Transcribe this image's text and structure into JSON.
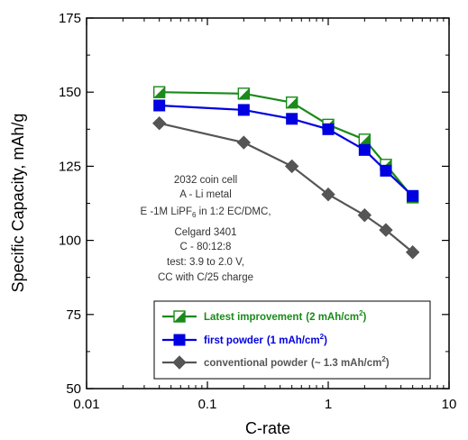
{
  "chart_data": {
    "type": "line",
    "xscale": "log",
    "xlim": [
      0.01,
      10
    ],
    "ylim": [
      50,
      175
    ],
    "xticks": [
      0.01,
      0.1,
      1,
      10
    ],
    "xtick_labels": [
      "0.01",
      "0.1",
      "1",
      "10"
    ],
    "yticks": [
      50,
      75,
      100,
      125,
      150,
      175
    ],
    "ytick_labels": [
      "50",
      "75",
      "100",
      "125",
      "150",
      "175"
    ],
    "xlabel": "C-rate",
    "ylabel": "Specific Capacity, mAh/g",
    "grid": false,
    "legend_position": "bottom-right",
    "series": [
      {
        "name": "Latest improvement",
        "name_suffix": "(2 mAh/cm",
        "name_sup": "2",
        "name_close": ")",
        "color": "#1a8a1a",
        "marker": "half-filled-square",
        "x": [
          0.04,
          0.2,
          0.5,
          1,
          2,
          3,
          5
        ],
        "y": [
          150,
          149.5,
          146.5,
          139,
          134,
          125.5,
          114.5
        ]
      },
      {
        "name": "first powder",
        "name_suffix": "(1 mAh/cm",
        "name_sup": "2",
        "name_close": ")",
        "color": "#0000e0",
        "marker": "square",
        "x": [
          0.04,
          0.2,
          0.5,
          1,
          2,
          3,
          5
        ],
        "y": [
          145.5,
          144,
          141,
          137.5,
          130.5,
          123.5,
          115
        ]
      },
      {
        "name": "conventional powder",
        "name_suffix": "(~ 1.3 mAh/cm",
        "name_sup": "2",
        "name_close": ")",
        "color": "#555555",
        "marker": "diamond",
        "x": [
          0.04,
          0.2,
          0.5,
          1,
          2,
          3,
          5
        ],
        "y": [
          139.5,
          133,
          125,
          115.5,
          108.5,
          103.5,
          96
        ]
      }
    ],
    "annotation": {
      "lines": [
        "2032 coin cell",
        "A - Li metal",
        "E -1M LiPF",
        "Celgard 3401",
        "C - 80:12:8",
        "test:  3.9 to 2.0 V,",
        "CC with C/25 charge"
      ],
      "line3_sub": "6",
      "line3_rest": " in 1:2 EC/DMC,"
    }
  }
}
